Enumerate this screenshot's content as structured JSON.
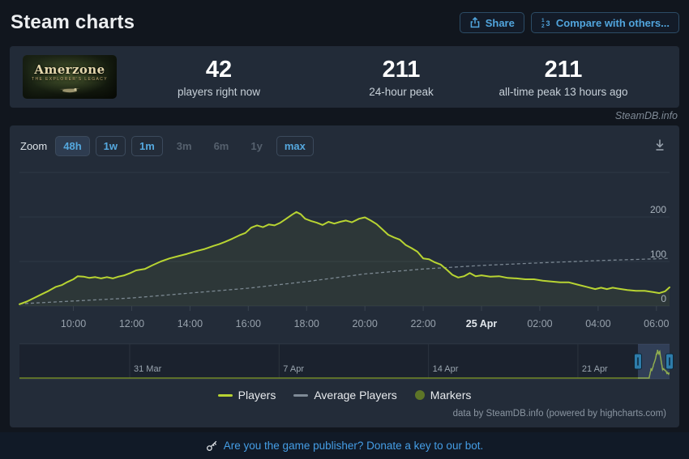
{
  "header": {
    "title": "Steam charts",
    "share": "Share",
    "compare": "Compare with others..."
  },
  "stats": {
    "game_title": "Amerzone",
    "game_subtitle": "THE EXPLORER'S LEGACY",
    "current_players": "42",
    "current_label": "players right now",
    "peak_24h": "211",
    "peak_24h_label": "24-hour peak",
    "peak_alltime": "211",
    "peak_alltime_label": "all-time peak 13 hours ago"
  },
  "watermark": "SteamDB.info",
  "chart": {
    "zoom_label": "Zoom",
    "zoom_buttons": [
      {
        "label": "48h",
        "state": "active"
      },
      {
        "label": "1w",
        "state": "normal"
      },
      {
        "label": "1m",
        "state": "normal"
      },
      {
        "label": "3m",
        "state": "disabled"
      },
      {
        "label": "6m",
        "state": "disabled"
      },
      {
        "label": "1y",
        "state": "disabled"
      },
      {
        "label": "max",
        "state": "normal"
      }
    ],
    "legend": [
      {
        "label": "Players",
        "color": "#b8d432",
        "swatch": "line"
      },
      {
        "label": "Average Players",
        "color": "#7f8b97",
        "swatch": "line"
      },
      {
        "label": "Markers",
        "color": "#5d7527",
        "swatch": "dot"
      }
    ],
    "attribution": "data by SteamDB.info (powered by highcharts.com)"
  },
  "chart_data": {
    "type": "line",
    "title": "Amerzone concurrent players (48h view)",
    "x_axis_note": "hours since 24 Apr 00:00, range 24 Apr ~08:10 to 25 Apr ~06:30",
    "x_range_hours": [
      8.15,
      30.45
    ],
    "ylim": [
      0,
      300
    ],
    "y_grid": [
      0,
      100,
      200,
      300
    ],
    "y_ticks": [
      {
        "v": 0,
        "label": "0"
      },
      {
        "v": 100,
        "label": "100"
      },
      {
        "v": 200,
        "label": "200"
      }
    ],
    "x_ticks": [
      {
        "t": 10,
        "label": "10:00"
      },
      {
        "t": 12,
        "label": "12:00"
      },
      {
        "t": 14,
        "label": "14:00"
      },
      {
        "t": 16,
        "label": "16:00"
      },
      {
        "t": 18,
        "label": "18:00"
      },
      {
        "t": 20,
        "label": "20:00"
      },
      {
        "t": 22,
        "label": "22:00"
      },
      {
        "t": 24,
        "label": "25 Apr",
        "emph": true
      },
      {
        "t": 26,
        "label": "02:00"
      },
      {
        "t": 28,
        "label": "04:00"
      },
      {
        "t": 30,
        "label": "06:00"
      }
    ],
    "series": [
      {
        "name": "Players",
        "color": "#b8d432",
        "points": [
          [
            8.15,
            4
          ],
          [
            8.4,
            10
          ],
          [
            8.65,
            18
          ],
          [
            8.9,
            26
          ],
          [
            9.15,
            34
          ],
          [
            9.4,
            43
          ],
          [
            9.6,
            47
          ],
          [
            9.8,
            54
          ],
          [
            10.0,
            60
          ],
          [
            10.15,
            67
          ],
          [
            10.35,
            66
          ],
          [
            10.55,
            63
          ],
          [
            10.75,
            65
          ],
          [
            10.95,
            62
          ],
          [
            11.15,
            65
          ],
          [
            11.35,
            62
          ],
          [
            11.55,
            66
          ],
          [
            11.75,
            69
          ],
          [
            11.95,
            74
          ],
          [
            12.15,
            80
          ],
          [
            12.45,
            83
          ],
          [
            12.7,
            91
          ],
          [
            13.0,
            100
          ],
          [
            13.3,
            107
          ],
          [
            13.6,
            112
          ],
          [
            13.9,
            117
          ],
          [
            14.2,
            123
          ],
          [
            14.5,
            128
          ],
          [
            14.8,
            135
          ],
          [
            15.0,
            139
          ],
          [
            15.2,
            144
          ],
          [
            15.45,
            151
          ],
          [
            15.7,
            159
          ],
          [
            15.9,
            164
          ],
          [
            16.1,
            176
          ],
          [
            16.3,
            181
          ],
          [
            16.5,
            177
          ],
          [
            16.7,
            183
          ],
          [
            16.9,
            181
          ],
          [
            17.1,
            187
          ],
          [
            17.3,
            196
          ],
          [
            17.5,
            205
          ],
          [
            17.65,
            211
          ],
          [
            17.8,
            206
          ],
          [
            17.95,
            196
          ],
          [
            18.15,
            191
          ],
          [
            18.35,
            187
          ],
          [
            18.55,
            182
          ],
          [
            18.75,
            189
          ],
          [
            18.95,
            185
          ],
          [
            19.15,
            189
          ],
          [
            19.35,
            192
          ],
          [
            19.55,
            188
          ],
          [
            19.8,
            196
          ],
          [
            20.0,
            199
          ],
          [
            20.2,
            192
          ],
          [
            20.4,
            184
          ],
          [
            20.6,
            172
          ],
          [
            20.8,
            160
          ],
          [
            21.0,
            154
          ],
          [
            21.2,
            149
          ],
          [
            21.4,
            137
          ],
          [
            21.6,
            130
          ],
          [
            21.8,
            122
          ],
          [
            22.0,
            107
          ],
          [
            22.2,
            105
          ],
          [
            22.4,
            98
          ],
          [
            22.6,
            93
          ],
          [
            22.8,
            82
          ],
          [
            23.0,
            70
          ],
          [
            23.2,
            64
          ],
          [
            23.4,
            67
          ],
          [
            23.6,
            74
          ],
          [
            23.8,
            67
          ],
          [
            24.0,
            69
          ],
          [
            24.3,
            66
          ],
          [
            24.6,
            67
          ],
          [
            24.9,
            63
          ],
          [
            25.2,
            62
          ],
          [
            25.5,
            60
          ],
          [
            25.8,
            60
          ],
          [
            26.1,
            57
          ],
          [
            26.4,
            55
          ],
          [
            26.7,
            53
          ],
          [
            27.0,
            53
          ],
          [
            27.3,
            48
          ],
          [
            27.6,
            43
          ],
          [
            27.9,
            38
          ],
          [
            28.1,
            41
          ],
          [
            28.3,
            38
          ],
          [
            28.5,
            41
          ],
          [
            28.7,
            39
          ],
          [
            29.0,
            36
          ],
          [
            29.3,
            34
          ],
          [
            29.6,
            34
          ],
          [
            29.9,
            31
          ],
          [
            30.1,
            29
          ],
          [
            30.3,
            33
          ],
          [
            30.45,
            42
          ]
        ]
      },
      {
        "name": "Average Players",
        "color": "#8f9ca8",
        "dashed": true,
        "points": [
          [
            8.15,
            5
          ],
          [
            12,
            18
          ],
          [
            16,
            40
          ],
          [
            18,
            55
          ],
          [
            20,
            72
          ],
          [
            22,
            83
          ],
          [
            24,
            91
          ],
          [
            26,
            97
          ],
          [
            28,
            102
          ],
          [
            30.45,
            107
          ]
        ]
      }
    ],
    "navigator": {
      "ticks": [
        {
          "d": 0,
          "label": "31 Mar"
        },
        {
          "d": 7,
          "label": "7 Apr"
        },
        {
          "d": 14,
          "label": "14 Apr"
        },
        {
          "d": 21,
          "label": "21 Apr"
        }
      ],
      "note": "selection window covers the last 48h at far right"
    }
  },
  "footer": {
    "link": "Are you the game publisher? Donate a key to our bot."
  }
}
